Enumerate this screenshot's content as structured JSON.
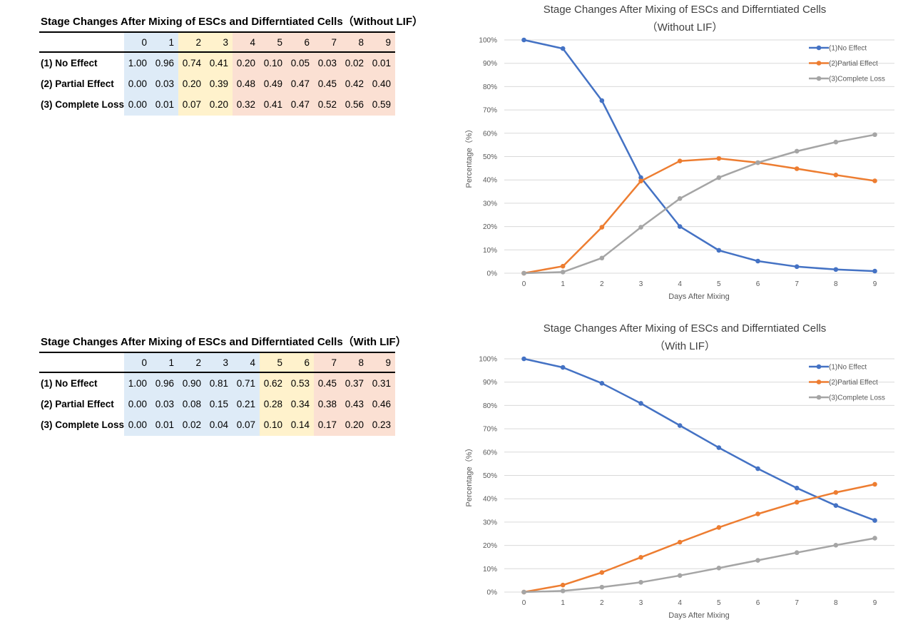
{
  "tables": [
    {
      "title": "Stage Changes After Mixing of ESCs and Differntiated Cells（Without LIF）",
      "days": [
        "0",
        "1",
        "2",
        "3",
        "4",
        "5",
        "6",
        "7",
        "8",
        "9"
      ],
      "day_colors": [
        "blue",
        "blue",
        "yellow",
        "yellow",
        "pink",
        "pink",
        "pink",
        "pink",
        "pink",
        "pink"
      ],
      "rows": [
        {
          "label": "(1) No Effect",
          "values": [
            "1.00",
            "0.96",
            "0.74",
            "0.41",
            "0.20",
            "0.10",
            "0.05",
            "0.03",
            "0.02",
            "0.01"
          ]
        },
        {
          "label": "(2) Partial Effect",
          "values": [
            "0.00",
            "0.03",
            "0.20",
            "0.39",
            "0.48",
            "0.49",
            "0.47",
            "0.45",
            "0.42",
            "0.40"
          ]
        },
        {
          "label": "(3) Complete Loss",
          "values": [
            "0.00",
            "0.01",
            "0.07",
            "0.20",
            "0.32",
            "0.41",
            "0.47",
            "0.52",
            "0.56",
            "0.59"
          ]
        }
      ]
    },
    {
      "title": "Stage Changes After Mixing of ESCs and Differntiated Cells（With LIF）",
      "days": [
        "0",
        "1",
        "2",
        "3",
        "4",
        "5",
        "6",
        "7",
        "8",
        "9"
      ],
      "day_colors": [
        "blue",
        "blue",
        "blue",
        "blue",
        "blue",
        "yellow",
        "yellow",
        "pink",
        "pink",
        "pink"
      ],
      "rows": [
        {
          "label": "(1) No Effect",
          "values": [
            "1.00",
            "0.96",
            "0.90",
            "0.81",
            "0.71",
            "0.62",
            "0.53",
            "0.45",
            "0.37",
            "0.31"
          ]
        },
        {
          "label": "(2) Partial Effect",
          "values": [
            "0.00",
            "0.03",
            "0.08",
            "0.15",
            "0.21",
            "0.28",
            "0.34",
            "0.38",
            "0.43",
            "0.46"
          ]
        },
        {
          "label": "(3) Complete Loss",
          "values": [
            "0.00",
            "0.01",
            "0.02",
            "0.04",
            "0.07",
            "0.10",
            "0.14",
            "0.17",
            "0.20",
            "0.23"
          ]
        }
      ]
    }
  ],
  "colors": {
    "blue": "#4472c4",
    "orange": "#ed7d31",
    "gray": "#a5a5a5",
    "cell_blue": "#deebf7",
    "cell_yellow": "#fff2cc",
    "cell_pink": "#fbe0d3"
  },
  "chart_data": [
    {
      "type": "line",
      "title": "Stage Changes After Mixing of ESCs and Differntiated Cells",
      "subtitle": "（Without LIF）",
      "xlabel": "Days After Mixing",
      "ylabel": "Percentage（%）",
      "x": [
        0,
        1,
        2,
        3,
        4,
        5,
        6,
        7,
        8,
        9
      ],
      "ylim": [
        0,
        1
      ],
      "yticks": [
        "0%",
        "10%",
        "20%",
        "30%",
        "40%",
        "50%",
        "60%",
        "70%",
        "80%",
        "90%",
        "100%"
      ],
      "legend": "top-right",
      "series": [
        {
          "name": "(1)No Effect",
          "color": "#4472c4",
          "values": [
            1.0,
            0.963,
            0.74,
            0.41,
            0.2,
            0.098,
            0.052,
            0.028,
            0.016,
            0.009
          ]
        },
        {
          "name": "(2)Partial Effect",
          "color": "#ed7d31",
          "values": [
            0.0,
            0.03,
            0.197,
            0.395,
            0.481,
            0.492,
            0.474,
            0.448,
            0.421,
            0.396
          ]
        },
        {
          "name": "(3)Complete Loss",
          "color": "#a5a5a5",
          "values": [
            0.0,
            0.005,
            0.065,
            0.197,
            0.32,
            0.41,
            0.474,
            0.523,
            0.562,
            0.594
          ]
        }
      ]
    },
    {
      "type": "line",
      "title": "Stage Changes After Mixing of ESCs and Differntiated Cells",
      "subtitle": "（With LIF）",
      "xlabel": "Days After Mixing",
      "ylabel": "Percentage（%）",
      "x": [
        0,
        1,
        2,
        3,
        4,
        5,
        6,
        7,
        8,
        9
      ],
      "ylim": [
        0,
        1
      ],
      "yticks": [
        "0%",
        "10%",
        "20%",
        "30%",
        "40%",
        "50%",
        "60%",
        "70%",
        "80%",
        "90%",
        "100%"
      ],
      "legend": "top-right",
      "series": [
        {
          "name": "(1)No Effect",
          "color": "#4472c4",
          "values": [
            1.0,
            0.963,
            0.895,
            0.809,
            0.714,
            0.619,
            0.529,
            0.446,
            0.371,
            0.307
          ]
        },
        {
          "name": "(2)Partial Effect",
          "color": "#ed7d31",
          "values": [
            0.0,
            0.03,
            0.084,
            0.149,
            0.214,
            0.277,
            0.335,
            0.385,
            0.427,
            0.462
          ]
        },
        {
          "name": "(3)Complete Loss",
          "color": "#a5a5a5",
          "values": [
            0.0,
            0.005,
            0.021,
            0.042,
            0.071,
            0.103,
            0.136,
            0.169,
            0.201,
            0.231
          ]
        }
      ]
    }
  ]
}
